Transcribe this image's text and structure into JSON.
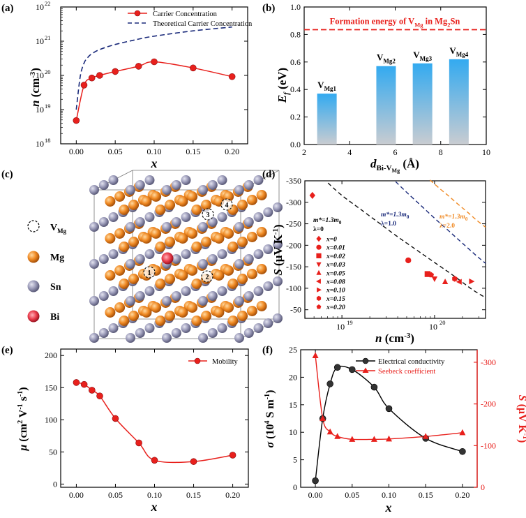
{
  "figure": {
    "panel_labels": [
      "(a)",
      "(b)",
      "(c)",
      "(d)",
      "(e)",
      "(f)"
    ],
    "colors": {
      "red": "#e8201c",
      "navy": "#1a2a7a",
      "orange": "#f08a24",
      "gray_atom": "#8a8aa8",
      "black": "#000000"
    }
  },
  "chart_data": [
    {
      "panel": "(a)",
      "type": "line",
      "yscale": "log",
      "ylabel_main": "n",
      "ylabel_unit": " (cm",
      "ylabel_sup": "-3",
      "ylabel_end": ")",
      "xlabel": "x",
      "xlim": [
        -0.02,
        0.22
      ],
      "ylim_exp": [
        18,
        22
      ],
      "xticks": [
        0.0,
        0.05,
        0.1,
        0.15,
        0.2
      ],
      "xtick_labels": [
        "0.00",
        "0.05",
        "0.10",
        "0.15",
        "0.20"
      ],
      "ytick_exps": [
        18,
        19,
        20,
        21,
        22
      ],
      "legend": [
        "Carrier Concentration",
        "Theoretical Carrier Concentration"
      ],
      "series": [
        {
          "name": "Carrier Concentration",
          "x": [
            0.0,
            0.01,
            0.02,
            0.03,
            0.05,
            0.08,
            0.1,
            0.15,
            0.2
          ],
          "values": [
            4.8e+18,
            5.2e+19,
            8.4e+19,
            1e+20,
            1.3e+20,
            1.85e+20,
            2.5e+20,
            1.65e+20,
            9.2e+19
          ]
        },
        {
          "name": "Theoretical Carrier Concentration",
          "x": [
            0.0,
            0.005,
            0.01,
            0.015,
            0.02,
            0.03,
            0.05,
            0.08,
            0.1,
            0.15,
            0.2
          ],
          "values": [
            1e+19,
            9e+19,
            2.3e+20,
            3.4e+20,
            4.3e+20,
            5.7e+20,
            8e+20,
            1.15e+21,
            1.4e+21,
            2e+21,
            2.6e+21
          ]
        }
      ]
    },
    {
      "panel": "(b)",
      "type": "bar",
      "ylabel_main": "E",
      "ylabel_sub": "f",
      "ylabel_unit": " (eV)",
      "xlabel_main": "d",
      "xlabel_sub": "Bi-V",
      "xlabel_subsub": "Mg",
      "xlabel_unit": " (Å)",
      "xlim": [
        2,
        10
      ],
      "ylim": [
        0.0,
        1.0
      ],
      "xticks": [
        2,
        4,
        6,
        8,
        10
      ],
      "yticks": [
        0.0,
        0.2,
        0.4,
        0.6,
        0.8,
        1.0
      ],
      "ytick_labels": [
        "0.0",
        "0.2",
        "0.4",
        "0.6",
        "0.8",
        "1.0"
      ],
      "bars": [
        {
          "x": 3.0,
          "value": 0.37,
          "label": "V",
          "label_sub": "Mg1"
        },
        {
          "x": 5.6,
          "value": 0.57,
          "label": "V",
          "label_sub": "Mg2"
        },
        {
          "x": 7.2,
          "value": 0.59,
          "label": "V",
          "label_sub": "Mg3"
        },
        {
          "x": 8.8,
          "value": 0.62,
          "label": "V",
          "label_sub": "Mg4"
        }
      ],
      "reference_line": {
        "value": 0.835,
        "text": "Formation energy of V",
        "sub": "Mg",
        "text2": " in Mg",
        "sub2": "2",
        "text3": "Sn"
      }
    },
    {
      "panel": "(d)",
      "type": "scatter",
      "xscale": "log",
      "ylabel_main": "S",
      "ylabel_unit": " (μV K",
      "ylabel_sup": "-1",
      "ylabel_end": ")",
      "xlabel_main": "n",
      "xlabel_unit": " (cm",
      "xlabel_sup": "-3",
      "xlabel_end": ")",
      "xlim_exp": [
        18.6,
        20.55
      ],
      "ylim": [
        -350,
        -30
      ],
      "ytick_values": [
        -350,
        -300,
        -250,
        -200,
        -150,
        -100,
        -50
      ],
      "ytick_labels": [
        "-350",
        "-300",
        "-250",
        "-200",
        "-150",
        "-100",
        "-50"
      ],
      "xtick_exps": [
        19,
        20
      ],
      "curves": [
        {
          "label": "m*=1.3m0, λ=0",
          "x_exp": [
            18.85,
            19.0,
            19.2,
            19.4,
            19.6,
            19.8,
            20.0,
            20.2,
            20.4,
            20.55
          ],
          "values": [
            -345,
            -316,
            -284,
            -252,
            -220,
            -190,
            -160,
            -130,
            -98,
            -78
          ]
        },
        {
          "label": "m*=1.3m0, λ=1.0",
          "x_exp": [
            19.58,
            19.7,
            19.85,
            20.0,
            20.15,
            20.3,
            20.45,
            20.55
          ],
          "values": [
            -348,
            -323,
            -293,
            -263,
            -234,
            -205,
            -176,
            -158
          ]
        },
        {
          "label": "m*=1.3m0, λ=2.0",
          "x_exp": [
            19.95,
            20.05,
            20.15,
            20.25,
            20.35,
            20.45,
            20.55
          ],
          "values": [
            -352,
            -333,
            -315,
            -296,
            -278,
            -259,
            -242
          ]
        }
      ],
      "curve_texts": [
        {
          "line1": "m*=1.3m",
          "sub": "0",
          "line2": "λ=0"
        },
        {
          "line1": "m*=1.3m",
          "sub": "0",
          "line2": "λ=1.0"
        },
        {
          "line1": "m*=1.3m",
          "sub": "0",
          "line2": "λ=2.0"
        }
      ],
      "points": [
        {
          "label": "x=0",
          "n": 4.8e+18,
          "S": -316,
          "marker": "diamond"
        },
        {
          "label": "x=0.01",
          "n": 5.2e+19,
          "S": -165,
          "marker": "circle"
        },
        {
          "label": "x=0.02",
          "n": 8.4e+19,
          "S": -133,
          "marker": "square"
        },
        {
          "label": "x=0.03",
          "n": 1e+20,
          "S": -122,
          "marker": "tri-down"
        },
        {
          "label": "x=0.05",
          "n": 1.3e+20,
          "S": -115,
          "marker": "tri-up"
        },
        {
          "label": "x=0.08",
          "n": 1.85e+20,
          "S": -115,
          "marker": "tri-left"
        },
        {
          "label": "x=0.10",
          "n": 2.5e+20,
          "S": -116,
          "marker": "tri-right"
        },
        {
          "label": "x=0.15",
          "n": 1.65e+20,
          "S": -122,
          "marker": "hexagon"
        },
        {
          "label": "x=0.20",
          "n": 9.2e+19,
          "S": -131,
          "marker": "pentagon"
        }
      ]
    },
    {
      "panel": "(e)",
      "type": "line",
      "ylabel_main": "μ",
      "ylabel_unit": " (cm",
      "ylabel_sup": "2",
      "ylabel_unit2": " V",
      "ylabel_sup2": "-1",
      "ylabel_unit3": " s",
      "ylabel_sup3": "-1",
      "ylabel_end": ")",
      "xlabel": "x",
      "xlim": [
        -0.02,
        0.22
      ],
      "ylim": [
        -5,
        210
      ],
      "xticks": [
        0.0,
        0.05,
        0.1,
        0.15,
        0.2
      ],
      "xtick_labels": [
        "0.00",
        "0.05",
        "0.10",
        "0.15",
        "0.20"
      ],
      "yticks": [
        0,
        50,
        100,
        150,
        200
      ],
      "ytick_labels": [
        "0",
        "50",
        "100",
        "150",
        "200"
      ],
      "legend": [
        "Mobility"
      ],
      "series": [
        {
          "name": "Mobility",
          "x": [
            0.0,
            0.01,
            0.02,
            0.03,
            0.05,
            0.08,
            0.1,
            0.15,
            0.2
          ],
          "values": [
            158,
            155,
            146,
            137,
            102,
            64,
            37,
            35,
            45
          ]
        }
      ]
    },
    {
      "panel": "(f)",
      "type": "line",
      "ylabel_left_main": "σ",
      "ylabel_left_unit": " (10",
      "ylabel_left_sup": "4",
      "ylabel_left_unit2": " S m",
      "ylabel_left_sup2": "-1",
      "ylabel_left_end": ")",
      "ylabel_right_main": "S",
      "ylabel_right_unit": " (μV K",
      "ylabel_right_sup": "-1",
      "ylabel_right_end": ")",
      "xlabel": "x",
      "xlim": [
        -0.02,
        0.22
      ],
      "ylim_left": [
        0,
        25
      ],
      "ylim_right": [
        0,
        -330
      ],
      "xticks": [
        0.0,
        0.05,
        0.1,
        0.15,
        0.2
      ],
      "xtick_labels": [
        "0.00",
        "0.05",
        "0.10",
        "0.15",
        "0.20"
      ],
      "yticks_left": [
        0,
        5,
        10,
        15,
        20,
        25
      ],
      "ytick_labels_left": [
        "0",
        "5",
        "10",
        "15",
        "20",
        "25"
      ],
      "yticks_right": [
        0,
        -100,
        -200,
        -300
      ],
      "ytick_labels_right": [
        "0",
        "-100",
        "-200",
        "-300"
      ],
      "legend": [
        "Electrical conductivity",
        "Seebeck coefficient"
      ],
      "series": [
        {
          "name": "Electrical conductivity",
          "axis": "left",
          "x": [
            0.0,
            0.01,
            0.02,
            0.03,
            0.05,
            0.08,
            0.1,
            0.15,
            0.2
          ],
          "values": [
            1.2,
            12.5,
            18.8,
            21.8,
            21.4,
            18.2,
            14.3,
            8.9,
            6.5
          ]
        },
        {
          "name": "Seebeck coefficient",
          "axis": "right",
          "x": [
            0.0,
            0.01,
            0.02,
            0.03,
            0.05,
            0.08,
            0.1,
            0.15,
            0.2
          ],
          "values": [
            -316,
            -165,
            -133,
            -122,
            -115,
            -115,
            -116,
            -122,
            -131
          ]
        }
      ]
    }
  ],
  "structure": {
    "legend": [
      {
        "name": "V",
        "sub": "Mg",
        "kind": "vacancy"
      },
      {
        "name": "Mg",
        "sub": "",
        "kind": "mg"
      },
      {
        "name": "Sn",
        "sub": "",
        "kind": "sn"
      },
      {
        "name": "Bi",
        "sub": "",
        "kind": "bi"
      }
    ],
    "vacancy_labels": [
      "1",
      "2",
      "3",
      "4"
    ]
  }
}
